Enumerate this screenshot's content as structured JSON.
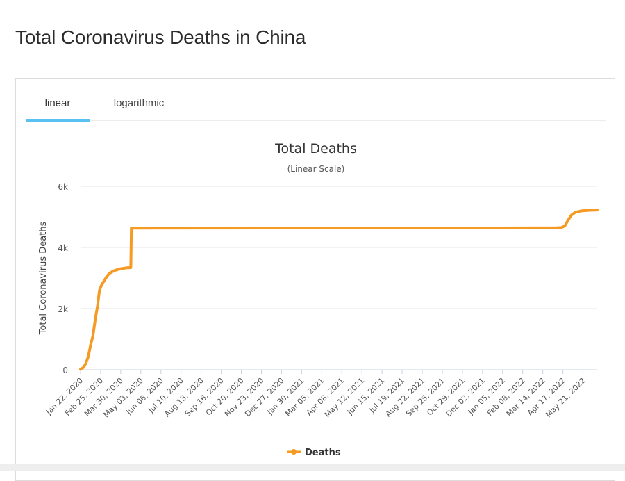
{
  "page": {
    "title": "Total Coronavirus Deaths in China"
  },
  "tabs": [
    {
      "label": "linear",
      "active": true
    },
    {
      "label": "logarithmic",
      "active": false
    }
  ],
  "chart_data": {
    "type": "line",
    "title": "Total Deaths",
    "subtitle": "(Linear Scale)",
    "ylabel": "Total Coronavirus Deaths",
    "xlabel": "",
    "ylim": [
      0,
      6000
    ],
    "yticks": [
      {
        "value": 0,
        "label": "0"
      },
      {
        "value": 2000,
        "label": "2k"
      },
      {
        "value": 4000,
        "label": "4k"
      },
      {
        "value": 6000,
        "label": "6k"
      }
    ],
    "x_range": [
      "2020-01-22",
      "2022-06-14"
    ],
    "x_tick_labels": [
      "Jan 22, 2020",
      "Feb 25, 2020",
      "Mar 30, 2020",
      "May 03, 2020",
      "Jun 06, 2020",
      "Jul 10, 2020",
      "Aug 13, 2020",
      "Sep 16, 2020",
      "Oct 20, 2020",
      "Nov 23, 2020",
      "Dec 27, 2020",
      "Jan 30, 2021",
      "Mar 05, 2021",
      "Apr 08, 2021",
      "May 12, 2021",
      "Jun 15, 2021",
      "Jul 19, 2021",
      "Aug 22, 2021",
      "Sep 25, 2021",
      "Oct 29, 2021",
      "Dec 02, 2021",
      "Jan 05, 2022",
      "Feb 08, 2022",
      "Mar 14, 2022",
      "Apr 17, 2022",
      "May 21, 2022"
    ],
    "grid": true,
    "legend_position": "bottom-center",
    "series": [
      {
        "name": "Deaths",
        "color": "#f59a23",
        "points": [
          [
            "2020-01-22",
            17
          ],
          [
            "2020-01-27",
            80
          ],
          [
            "2020-01-31",
            213
          ],
          [
            "2020-02-04",
            425
          ],
          [
            "2020-02-08",
            811
          ],
          [
            "2020-02-12",
            1113
          ],
          [
            "2020-02-16",
            1665
          ],
          [
            "2020-02-20",
            2118
          ],
          [
            "2020-02-23",
            2592
          ],
          [
            "2020-02-27",
            2788
          ],
          [
            "2020-03-02",
            2912
          ],
          [
            "2020-03-06",
            3042
          ],
          [
            "2020-03-10",
            3136
          ],
          [
            "2020-03-15",
            3199
          ],
          [
            "2020-03-20",
            3248
          ],
          [
            "2020-03-30",
            3304
          ],
          [
            "2020-04-10",
            3336
          ],
          [
            "2020-04-16",
            3342
          ],
          [
            "2020-04-17",
            4632
          ],
          [
            "2020-06-01",
            4634
          ],
          [
            "2021-03-01",
            4636
          ],
          [
            "2022-01-01",
            4636
          ],
          [
            "2022-03-14",
            4638
          ],
          [
            "2022-04-05",
            4638
          ],
          [
            "2022-04-14",
            4650
          ],
          [
            "2022-04-20",
            4700
          ],
          [
            "2022-04-26",
            4900
          ],
          [
            "2022-05-01",
            5050
          ],
          [
            "2022-05-08",
            5150
          ],
          [
            "2022-05-18",
            5195
          ],
          [
            "2022-06-01",
            5217
          ],
          [
            "2022-06-14",
            5224
          ]
        ]
      }
    ]
  }
}
